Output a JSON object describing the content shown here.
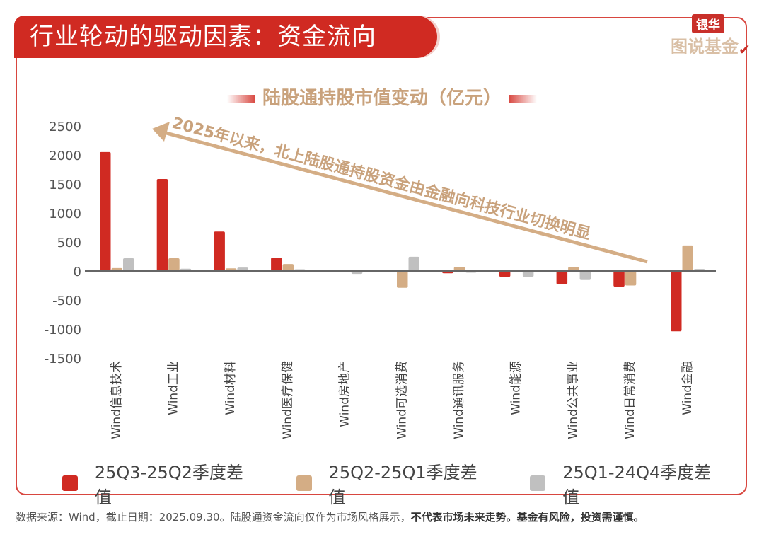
{
  "header": {
    "title": "行业轮动的驱动因素：资金流向"
  },
  "logo": {
    "top": "银华",
    "bottom": "图说基金"
  },
  "chart_data": {
    "type": "bar",
    "title": "陆股通持股市值变动（亿元）",
    "categories": [
      "Wind信息技术",
      "Wind工业",
      "Wind材料",
      "Wind医疗保健",
      "Wind房地产",
      "Wind可选消费",
      "Wind通讯服务",
      "Wind能源",
      "Wind公共事业",
      "Wind日常消费",
      "Wind金融"
    ],
    "series": [
      {
        "name": "25Q3-25Q2季度差值",
        "color": "#d02a22",
        "values": [
          2050,
          1585,
          680,
          230,
          0,
          -20,
          -40,
          -100,
          -230,
          -270,
          -1040
        ]
      },
      {
        "name": "25Q2-25Q1季度差值",
        "color": "#d4ad85",
        "values": [
          50,
          220,
          45,
          120,
          25,
          -290,
          70,
          -20,
          70,
          -250,
          440
        ]
      },
      {
        "name": "25Q1-24Q4季度差值",
        "color": "#c0c0c0",
        "values": [
          220,
          40,
          60,
          30,
          -50,
          245,
          -30,
          -100,
          -155,
          -20,
          35
        ]
      }
    ],
    "ylim": [
      -1500,
      2500
    ],
    "yticks": [
      "2500",
      "2000",
      "1500",
      "1000",
      "500",
      "0",
      "-500",
      "-1000",
      "-1500"
    ],
    "legend_position": "bottom",
    "annotation": "2025年以来，北上陆股通持股资金由金融向科技行业切换明显"
  },
  "footer": {
    "normal": "数据来源：Wind，截止日期：2025.09.30。陆股通资金流向仅作为市场风格展示，",
    "bold": "不代表市场未来走势。基金有风险，投资需谨慎。"
  }
}
